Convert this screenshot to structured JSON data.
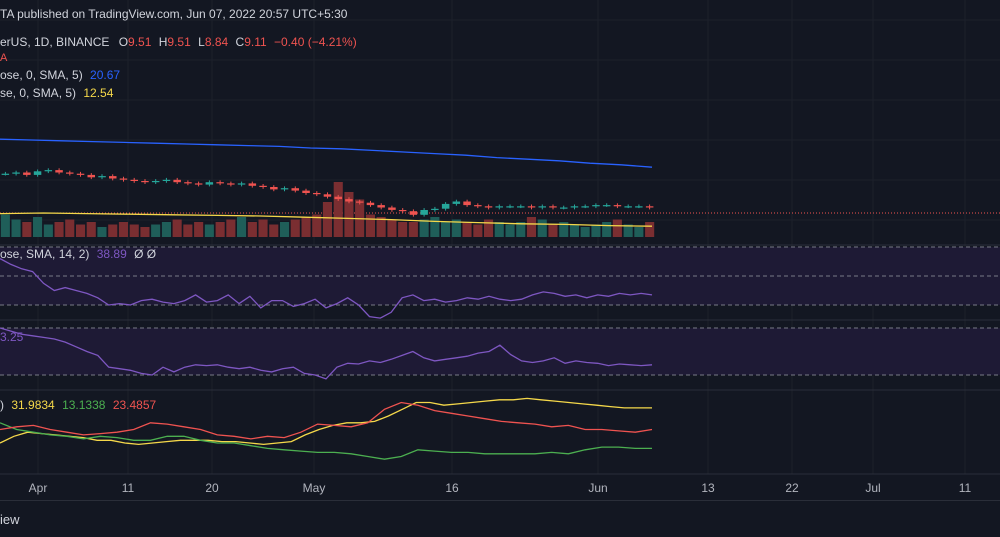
{
  "header": {
    "published": "TA published on TradingView.com, Jun 07, 2022 20:57 UTC+5:30"
  },
  "legend": {
    "symbol": "erUS, 1D, BINANCE",
    "o_label": "O",
    "o_val": "9.51",
    "h_label": "H",
    "h_val": "9.51",
    "l_label": "L",
    "l_val": "8.84",
    "c_label": "C",
    "c_val": "9.11",
    "change": "−0.40 (−4.21%)",
    "marker": "A",
    "ma1_label": "ose, 0, SMA, 5)",
    "ma1_val": "20.67",
    "ma2_label": "se, 0, SMA, 5)",
    "ma2_val": "12.54",
    "rsi_label": "ose, SMA, 14, 2)",
    "rsi_val": "38.89",
    "rsi_extra": "Ø Ø",
    "stoch_val": "3.25",
    "dmi_prefix": ")",
    "dmi_val1": "31.9834",
    "dmi_val2": "13.1338",
    "dmi_val3": "23.4857"
  },
  "footer": {
    "brand": "iew"
  },
  "colors": {
    "bg": "#131722",
    "grid": "#1f2330",
    "up": "#26a69a",
    "down": "#ef5350",
    "ma_blue": "#2962ff",
    "ma_yellow": "#f5d84a",
    "rsi": "#7e57c2",
    "band": "#1d1a33",
    "adx": "#f5d84a",
    "plus_di": "#4caf50",
    "minus_di": "#ef5350"
  },
  "chart_data": {
    "type": "line",
    "x_ticks": [
      "Apr",
      "11",
      "20",
      "May",
      "16",
      "Jun",
      "13",
      "22",
      "Jul",
      "11"
    ],
    "price_last": 9.11,
    "price_series": [
      11.9,
      12.0,
      11.8,
      12.1,
      12.2,
      12.0,
      11.9,
      11.8,
      11.6,
      11.7,
      11.5,
      11.4,
      11.3,
      11.2,
      11.3,
      11.4,
      11.2,
      11.1,
      11.0,
      11.2,
      11.1,
      11.0,
      11.1,
      10.9,
      10.8,
      10.6,
      10.7,
      10.5,
      10.3,
      10.2,
      10.0,
      9.8,
      9.6,
      9.5,
      9.3,
      9.1,
      8.9,
      8.8,
      8.5,
      8.9,
      9.0,
      9.4,
      9.6,
      9.3,
      9.2,
      9.1,
      9.2,
      9.2,
      9.2,
      9.1,
      9.2,
      9.1,
      9.1,
      9.2,
      9.2,
      9.3,
      9.3,
      9.2,
      9.2,
      9.2,
      9.1
    ],
    "ma_slow": [
      16.1,
      16.0,
      15.9,
      15.8,
      15.7,
      15.6,
      15.5,
      15.4,
      15.3,
      15.2,
      15.0,
      14.9,
      14.7,
      14.5,
      14.3,
      14.1,
      13.8,
      13.6,
      13.4,
      13.1,
      12.9,
      12.6
    ],
    "ma_fast": [
      11.4,
      11.5,
      11.4,
      11.3,
      11.2,
      11.1,
      11.0,
      10.8,
      10.6,
      10.4,
      10.1,
      9.9,
      9.7,
      9.6,
      9.4,
      9.3
    ],
    "volume": [
      9,
      7,
      6,
      8,
      5,
      6,
      7,
      5,
      6,
      4,
      5,
      6,
      5,
      4,
      5,
      6,
      7,
      5,
      6,
      5,
      6,
      7,
      8,
      6,
      7,
      5,
      6,
      7,
      8,
      9,
      14,
      22,
      18,
      15,
      9,
      8,
      7,
      6,
      6,
      7,
      8,
      6,
      7,
      6,
      5,
      7,
      6,
      5,
      6,
      8,
      7,
      5,
      6,
      5,
      4,
      5,
      6,
      7,
      5,
      4,
      6
    ],
    "rsi": [
      62,
      58,
      55,
      53,
      45,
      40,
      42,
      40,
      38,
      35,
      30,
      31,
      30,
      33,
      34,
      32,
      31,
      33,
      37,
      32,
      33,
      37,
      31,
      36,
      28,
      33,
      33,
      29,
      31,
      34,
      28,
      31,
      35,
      30,
      22,
      21,
      25,
      35,
      37,
      33,
      34,
      32,
      33,
      35,
      34,
      36,
      34,
      33,
      34,
      37,
      39,
      38,
      36,
      37,
      35,
      37,
      36,
      38,
      37,
      38,
      37
    ],
    "stoch_rsi": [
      80,
      76,
      72,
      70,
      68,
      66,
      62,
      56,
      50,
      45,
      30,
      28,
      26,
      22,
      20,
      30,
      24,
      30,
      33,
      32,
      33,
      30,
      28,
      30,
      26,
      24,
      28,
      30,
      22,
      20,
      15,
      30,
      35,
      34,
      38,
      36,
      40,
      45,
      50,
      42,
      38,
      40,
      42,
      44,
      48,
      50,
      58,
      46,
      38,
      36,
      38,
      42,
      35,
      38,
      36,
      35,
      32,
      34,
      33,
      32,
      33
    ],
    "adx": [
      20,
      25,
      28,
      27,
      26,
      25,
      24,
      22,
      22,
      20,
      19,
      20,
      21,
      22,
      22,
      22,
      21,
      21,
      20,
      19,
      20,
      21,
      26,
      30,
      33,
      35,
      35,
      36,
      40,
      45,
      50,
      50,
      48,
      49,
      50,
      51,
      52,
      52,
      53,
      52,
      51,
      50,
      49,
      48,
      47,
      46,
      46,
      46
    ],
    "plus_di": [
      35,
      30,
      28,
      26,
      25,
      23,
      25,
      24,
      22,
      22,
      25,
      25,
      22,
      20,
      20,
      18,
      16,
      15,
      14,
      13,
      13,
      12,
      10,
      8,
      10,
      15,
      14,
      13,
      13,
      12,
      12,
      12,
      12,
      13,
      12,
      15,
      17,
      17,
      16,
      16
    ],
    "minus_di": [
      30,
      32,
      33,
      30,
      28,
      26,
      27,
      28,
      30,
      35,
      34,
      32,
      30,
      26,
      25,
      23,
      25,
      24,
      28,
      34,
      33,
      32,
      35,
      45,
      50,
      48,
      44,
      42,
      40,
      38,
      36,
      35,
      34,
      32,
      33,
      30,
      30,
      29,
      28,
      30
    ]
  }
}
